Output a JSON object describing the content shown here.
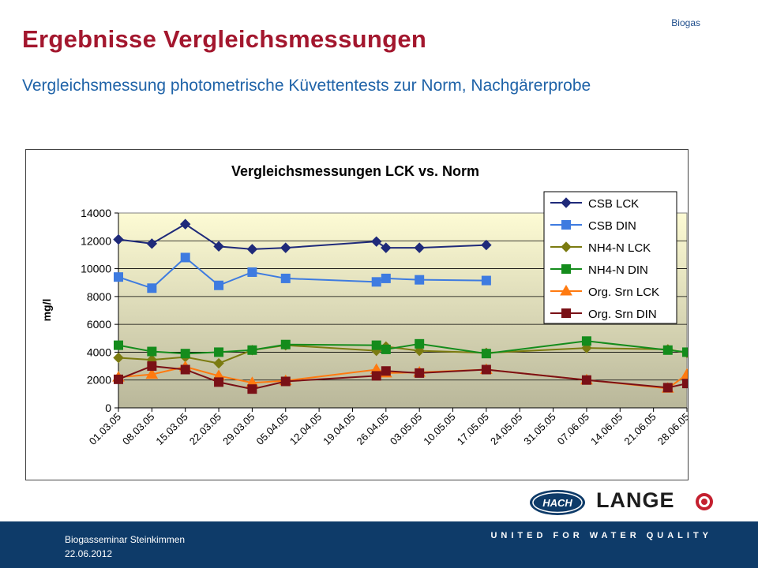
{
  "header": {
    "top_label": "Biogas",
    "title": "Ergebnisse Vergleichsmessungen",
    "subtitle": "Vergleichsmessung photometrische Küvettentests zur Norm, Nachgärerprobe"
  },
  "footer": {
    "line1": "Biogasseminar  Steinkimmen",
    "line2": "22.06.2012",
    "slogan": "UNITED FOR WATER QUALITY"
  },
  "logos": {
    "hach": "HACH",
    "lange": "LANGE"
  },
  "chart_data": {
    "type": "line",
    "title": "Vergleichsmessungen LCK vs. Norm",
    "ylabel": "mg/l",
    "xlabel": "",
    "ylim": [
      0,
      14000
    ],
    "yticks": [
      0,
      2000,
      4000,
      6000,
      8000,
      10000,
      12000,
      14000
    ],
    "grid": true,
    "legend": "top-right",
    "xticks": [
      "01.03.05",
      "08.03.05",
      "15.03.05",
      "22.03.05",
      "29.03.05",
      "05.04.05",
      "12.04.05",
      "19.04.05",
      "26.04.05",
      "03.05.05",
      "10.05.05",
      "17.05.05",
      "24.05.05",
      "31.05.05",
      "07.06.05",
      "14.06.05",
      "21.06.05",
      "28.06.05"
    ],
    "x": [
      "01.03.05",
      "08.03.05",
      "15.03.05",
      "22.03.05",
      "29.03.05",
      "05.04.05",
      "24.04.05",
      "26.04.05",
      "03.05.05",
      "17.05.05",
      "07.06.05",
      "24.06.05",
      "28.06.05"
    ],
    "series": [
      {
        "name": "CSB LCK",
        "color": "#1f2a7a",
        "marker": "diamond",
        "values": [
          12100,
          11800,
          13200,
          11600,
          11400,
          11500,
          11950,
          11500,
          11500,
          11700,
          null,
          null,
          null
        ]
      },
      {
        "name": "CSB DIN",
        "color": "#3e7be0",
        "marker": "square",
        "values": [
          9400,
          8600,
          10800,
          8800,
          9750,
          9300,
          9050,
          9300,
          9200,
          9150,
          null,
          null,
          null
        ]
      },
      {
        "name": "NH4-N LCK",
        "color": "#7b7b10",
        "marker": "diamond",
        "values": [
          3600,
          3450,
          3650,
          3200,
          4150,
          4500,
          4100,
          4400,
          4100,
          3950,
          4300,
          4200,
          3950
        ]
      },
      {
        "name": "NH4-N DIN",
        "color": "#148c1c",
        "marker": "square",
        "values": [
          4500,
          4050,
          3900,
          4000,
          4150,
          4550,
          4500,
          4200,
          4600,
          3900,
          4800,
          4150,
          4000
        ]
      },
      {
        "name": "Org. Srn  LCK",
        "color": "#ff7a10",
        "marker": "triangle",
        "values": [
          2200,
          2400,
          2950,
          2300,
          1800,
          1950,
          2750,
          2500,
          2550,
          2750,
          2000,
          1400,
          2400
        ]
      },
      {
        "name": "Org. Srn  DIN",
        "color": "#7a1016",
        "marker": "square",
        "values": [
          2050,
          3000,
          2750,
          1850,
          1350,
          1900,
          2300,
          2650,
          2500,
          2750,
          2000,
          1450,
          1750
        ]
      }
    ]
  }
}
